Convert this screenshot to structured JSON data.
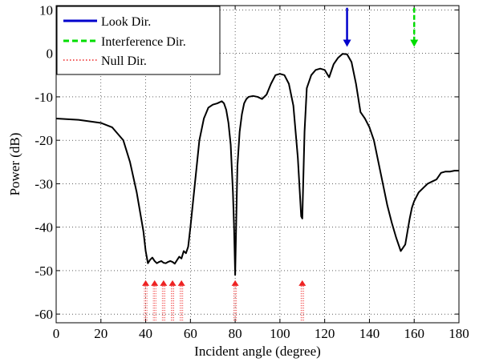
{
  "chart_data": {
    "type": "line",
    "xlabel": "Incident angle (degree)",
    "ylabel": "Power (dB)",
    "xlim": [
      0,
      180
    ],
    "ylim": [
      -62,
      11
    ],
    "xticks": [
      0,
      20,
      40,
      60,
      80,
      100,
      120,
      140,
      160,
      180
    ],
    "yticks": [
      10,
      0,
      -10,
      -20,
      -30,
      -40,
      -50,
      -60
    ],
    "xtick_labels": [
      "0",
      "20",
      "40",
      "60",
      "80",
      "100",
      "120",
      "140",
      "160",
      "180"
    ],
    "ytick_labels": [
      "10",
      "0",
      "-10",
      "-20",
      "-30",
      "-40",
      "-50",
      "-60"
    ],
    "grid": true,
    "legend_position": "top-left",
    "legend": [
      {
        "label": "Look Dir.",
        "color": "#0000cc",
        "style": "solid"
      },
      {
        "label": "Interference Dir.",
        "color": "#00dd00",
        "style": "dashed"
      },
      {
        "label": "Null Dir.",
        "color": "#ee2222",
        "style": "dotted"
      }
    ],
    "series": [
      {
        "color": "#000000",
        "x": [
          0,
          10,
          20,
          25,
          30,
          33,
          36,
          38,
          39,
          40,
          41,
          42,
          43,
          44,
          45,
          46,
          47,
          48,
          49,
          50,
          51,
          52,
          53,
          54,
          55,
          56,
          57,
          58,
          59,
          60,
          62,
          64,
          66,
          68,
          70,
          72,
          74,
          75,
          76,
          77,
          78,
          79,
          79.5,
          80,
          80.5,
          81,
          82,
          83,
          84,
          85,
          86,
          88,
          90,
          92,
          94,
          96,
          98,
          100,
          102,
          104,
          106,
          107,
          108,
          109,
          109.5,
          110,
          110.5,
          111,
          112,
          114,
          116,
          118,
          120,
          122,
          124,
          126,
          128,
          130,
          132,
          134,
          136,
          138,
          140,
          142,
          144,
          146,
          148,
          150,
          152,
          154,
          156,
          158,
          159,
          160,
          161,
          162,
          164,
          166,
          168,
          170,
          172,
          174,
          176,
          178,
          180
        ],
        "y": [
          -15,
          -15.3,
          -16,
          -17,
          -20,
          -25,
          -32,
          -38,
          -41,
          -45.5,
          -48.3,
          -47.5,
          -47,
          -47.8,
          -48.3,
          -48,
          -47.8,
          -48.2,
          -48.3,
          -48,
          -47.8,
          -48,
          -48.4,
          -47.6,
          -46.8,
          -47.2,
          -45.5,
          -46,
          -44.5,
          -40,
          -30,
          -20,
          -15,
          -12.5,
          -11.8,
          -11.5,
          -11,
          -11.5,
          -13,
          -16,
          -21,
          -32,
          -40,
          -51,
          -38,
          -26,
          -18,
          -14,
          -11.5,
          -10.5,
          -10,
          -9.8,
          -10,
          -10.5,
          -9.5,
          -7,
          -5,
          -4.7,
          -5,
          -7,
          -12,
          -18,
          -24,
          -33,
          -37.5,
          -38,
          -28,
          -18,
          -8,
          -5,
          -3.8,
          -3.5,
          -3.8,
          -5.5,
          -2.5,
          -1,
          -0.1,
          -0.2,
          -2,
          -7,
          -13.5,
          -15,
          -17,
          -20,
          -25,
          -30,
          -35,
          -39,
          -42.5,
          -45.5,
          -44,
          -38,
          -35.5,
          -34,
          -33,
          -32,
          -31,
          -30,
          -29.5,
          -29,
          -27.5,
          -27.2,
          -27.2,
          -27,
          -27
        ]
      }
    ],
    "look_direction": {
      "angle": 130,
      "color": "#0000cc"
    },
    "interference_direction": {
      "angle": 160,
      "color": "#00dd00"
    },
    "null_directions": {
      "angles": [
        40,
        44,
        48,
        52,
        56,
        80,
        110
      ],
      "color": "#ee2222"
    }
  }
}
